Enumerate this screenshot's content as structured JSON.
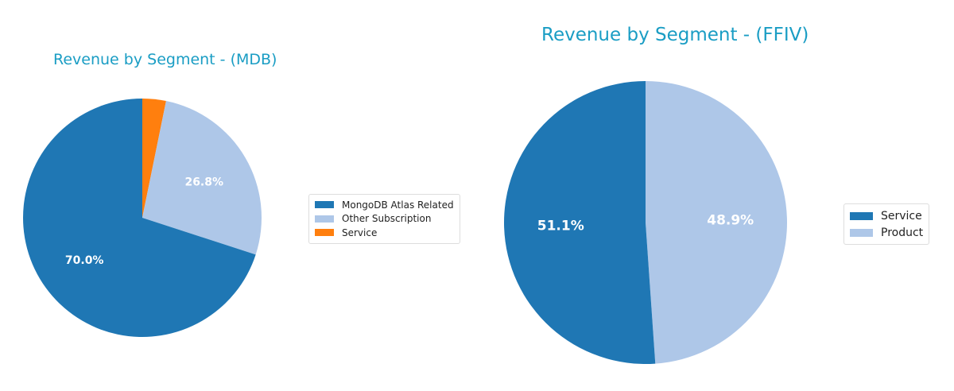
{
  "chart_data": [
    {
      "type": "pie",
      "title": "Revenue by Segment - (MDB)",
      "categories": [
        "MongoDB Atlas Related",
        "Other Subscription",
        "Service"
      ],
      "values": [
        70.0,
        26.8,
        3.2
      ],
      "labels": [
        "70.0%",
        "26.8%",
        ""
      ],
      "colors": [
        "#1f77b4",
        "#aec7e8",
        "#ff7f0e"
      ],
      "legend_position": "right"
    },
    {
      "type": "pie",
      "title": "Revenue by Segment - (FFIV)",
      "categories": [
        "Service",
        "Product"
      ],
      "values": [
        51.1,
        48.9
      ],
      "labels": [
        "51.1%",
        "48.9%"
      ],
      "colors": [
        "#1f77b4",
        "#aec7e8"
      ],
      "legend_position": "right"
    }
  ]
}
